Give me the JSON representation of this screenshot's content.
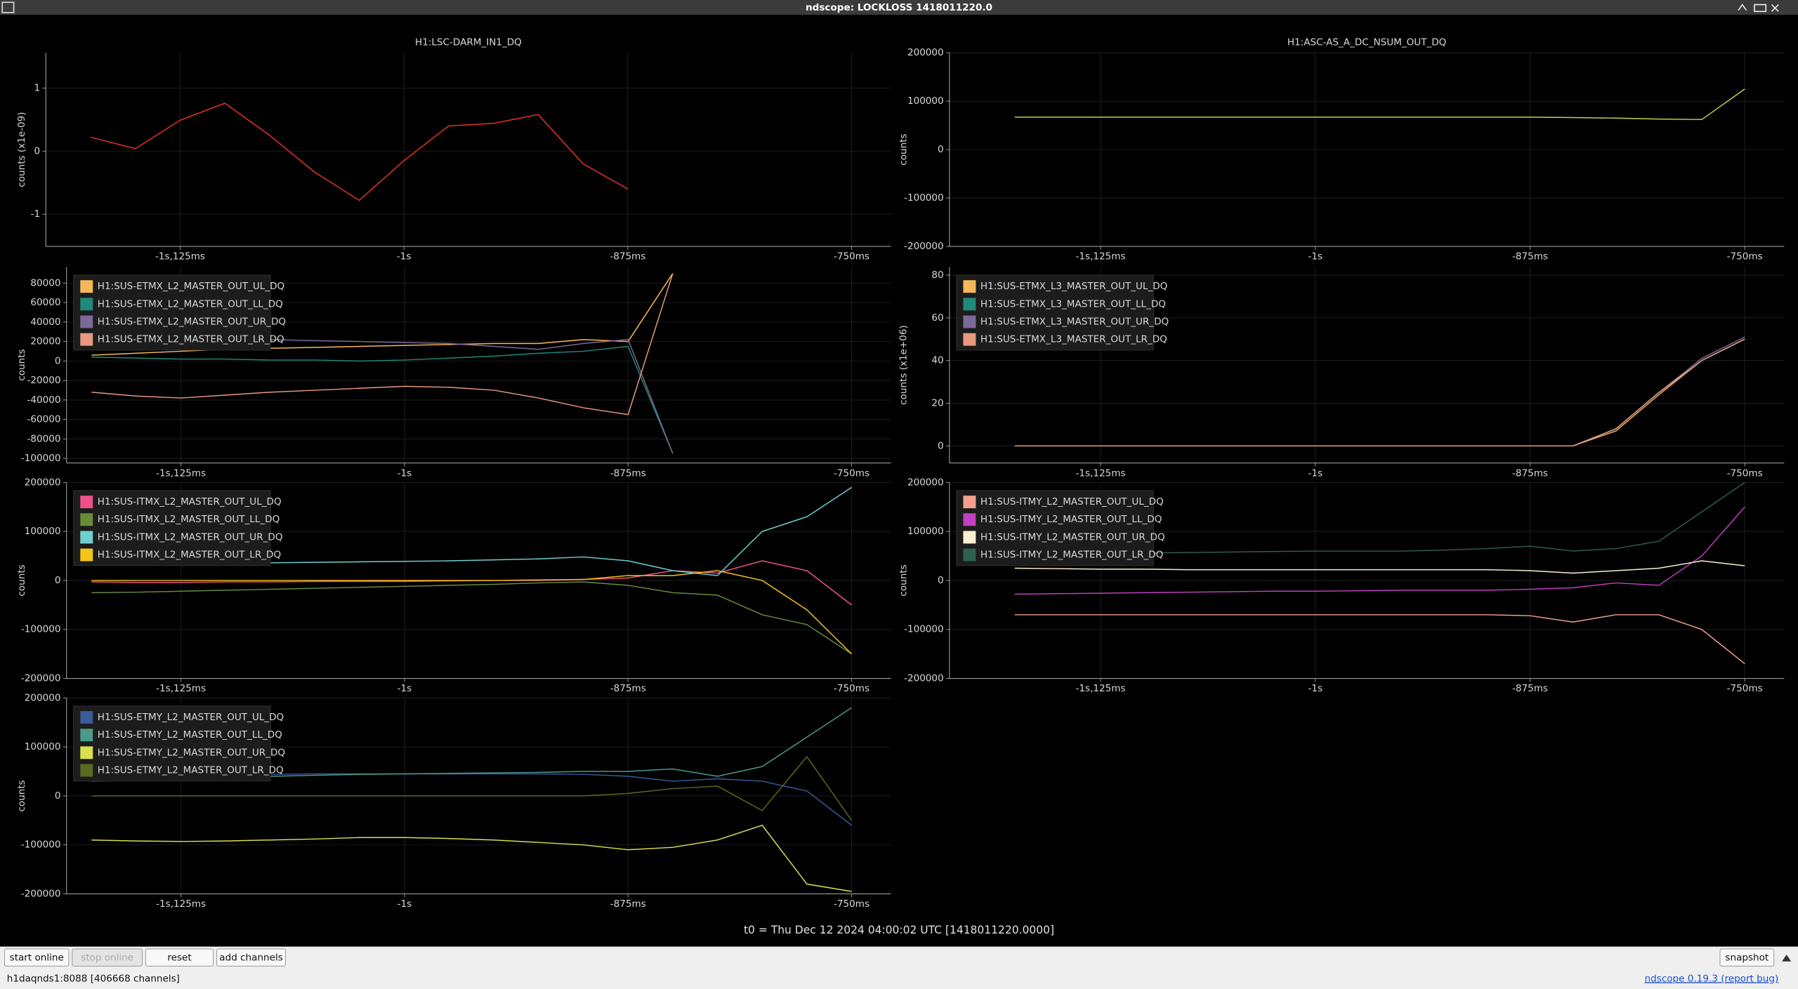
{
  "window": {
    "title": "ndscope: LOCKLOSS 1418011220.0"
  },
  "chart_data": [
    {
      "type": "line",
      "title": "H1:LSC-DARM_IN1_DQ",
      "y_label": "counts (x1e-09)",
      "x": [
        -1.175,
        -1.15,
        -1.125,
        -1.1,
        -1.075,
        -1.05,
        -1.025,
        -1.0,
        -0.975,
        -0.95,
        -0.925,
        -0.9,
        -0.875,
        -0.85,
        -0.825,
        -0.8,
        -0.775,
        -0.75
      ],
      "xlim": [
        -1.2,
        -0.728
      ],
      "xticks": [
        {
          "value": -1.125,
          "label": "-1s,125ms"
        },
        {
          "value": -1,
          "label": "-1s"
        },
        {
          "value": -0.875,
          "label": "-875ms"
        },
        {
          "value": -0.75,
          "label": "-750ms"
        }
      ],
      "ylim": [
        -1.51,
        1.56
      ],
      "yticks": [
        1,
        0,
        -1
      ],
      "grid": true,
      "series": [
        {
          "color": "#e8302a",
          "values": [
            0.22,
            0.04,
            0.49,
            0.76,
            0.25,
            -0.33,
            -0.78,
            -0.15,
            0.4,
            0.44,
            0.58,
            -0.2,
            -0.6,
            null,
            null,
            null,
            null,
            null
          ]
        }
      ]
    },
    {
      "type": "line",
      "title": "H1:ASC-AS_A_DC_NSUM_OUT_DQ",
      "y_label": "counts",
      "x": [
        -1.175,
        -1.15,
        -1.125,
        -1.1,
        -1.075,
        -1.05,
        -1.025,
        -1.0,
        -0.975,
        -0.95,
        -0.925,
        -0.9,
        -0.875,
        -0.85,
        -0.825,
        -0.8,
        -0.775,
        -0.75
      ],
      "xlim": [
        -1.213,
        -0.727
      ],
      "xticks": [
        {
          "value": -1.125,
          "label": "-1s,125ms"
        },
        {
          "value": -1,
          "label": "-1s"
        },
        {
          "value": -0.875,
          "label": "-875ms"
        },
        {
          "value": -0.75,
          "label": "-750ms"
        }
      ],
      "ylim": [
        -200000,
        200000
      ],
      "yticks": [
        200000,
        100000,
        0,
        -100000,
        -200000
      ],
      "grid": true,
      "series": [
        {
          "color": "#c8d040",
          "values": [
            67000,
            67000,
            67000,
            67000,
            67000,
            67000,
            67000,
            67000,
            67000,
            67000,
            67000,
            67000,
            67000,
            66000,
            65000,
            63000,
            62000,
            125000
          ]
        }
      ]
    },
    {
      "type": "line",
      "y_label": "counts",
      "x": [
        -1.175,
        -1.15,
        -1.125,
        -1.1,
        -1.075,
        -1.05,
        -1.025,
        -1.0,
        -0.975,
        -0.95,
        -0.925,
        -0.9,
        -0.875,
        -0.85,
        -0.825,
        -0.8,
        -0.775,
        -0.75
      ],
      "xlim": [
        -1.189,
        -0.728
      ],
      "xticks": [
        {
          "value": -1.125,
          "label": "-1s,125ms"
        },
        {
          "value": -1,
          "label": "-1s"
        },
        {
          "value": -0.875,
          "label": "-875ms"
        },
        {
          "value": -0.75,
          "label": "-750ms"
        }
      ],
      "ylim": [
        -104700,
        96500
      ],
      "yticks": [
        80000,
        60000,
        40000,
        20000,
        0,
        -20000,
        -40000,
        -60000,
        -80000,
        -100000
      ],
      "grid": true,
      "legend": "upper left",
      "series": [
        {
          "name": "H1:SUS-ETMX_L2_MASTER_OUT_UL_DQ",
          "color": "#f5b85b",
          "values": [
            6000,
            8000,
            10000,
            12000,
            13000,
            14000,
            15000,
            16000,
            17000,
            18000,
            18000,
            22000,
            20000,
            90000,
            null,
            null,
            null,
            null
          ]
        },
        {
          "name": "H1:SUS-ETMX_L2_MASTER_OUT_LL_DQ",
          "color": "#1f8a7a",
          "values": [
            4000,
            3000,
            2000,
            2000,
            1000,
            1000,
            0,
            1000,
            3000,
            5000,
            8000,
            10000,
            15000,
            -95000,
            null,
            null,
            null,
            null
          ]
        },
        {
          "name": "H1:SUS-ETMX_L2_MASTER_OUT_UR_DQ",
          "color": "#7a6a9a",
          "values": [
            28000,
            26000,
            24000,
            22000,
            22000,
            21000,
            20000,
            19000,
            18000,
            15000,
            12000,
            18000,
            22000,
            -95000,
            null,
            null,
            null,
            null
          ]
        },
        {
          "name": "H1:SUS-ETMX_L2_MASTER_OUT_LR_DQ",
          "color": "#e89a80",
          "values": [
            -32000,
            -36000,
            -38000,
            -35000,
            -32000,
            -30000,
            -28000,
            -26000,
            -27000,
            -30000,
            -38000,
            -48000,
            -55000,
            90000,
            null,
            null,
            null,
            null
          ]
        }
      ]
    },
    {
      "type": "line",
      "y_label": "counts (x1e+06)",
      "x": [
        -1.175,
        -1.15,
        -1.125,
        -1.1,
        -1.075,
        -1.05,
        -1.025,
        -1.0,
        -0.975,
        -0.95,
        -0.925,
        -0.9,
        -0.875,
        -0.85,
        -0.825,
        -0.8,
        -0.775,
        -0.75
      ],
      "xlim": [
        -1.213,
        -0.727
      ],
      "xticks": [
        {
          "value": -1.125,
          "label": "-1s,125ms"
        },
        {
          "value": -1,
          "label": "-1s"
        },
        {
          "value": -0.875,
          "label": "-875ms"
        },
        {
          "value": -0.75,
          "label": "-750ms"
        }
      ],
      "ylim": [
        -8,
        83.8
      ],
      "yticks": [
        80,
        60,
        40,
        20,
        0
      ],
      "grid": true,
      "legend": "upper left",
      "series": [
        {
          "name": "H1:SUS-ETMX_L3_MASTER_OUT_UL_DQ",
          "color": "#f5b85b",
          "values": [
            0,
            0,
            0,
            0,
            0,
            0,
            0,
            0,
            0,
            0,
            0,
            0,
            0,
            0,
            7,
            24,
            40,
            50
          ]
        },
        {
          "name": "H1:SUS-ETMX_L3_MASTER_OUT_LL_DQ",
          "color": "#1f8a7a",
          "values": [
            0,
            0,
            0,
            0,
            0,
            0,
            0,
            0,
            0,
            0,
            0,
            0,
            0,
            0,
            8,
            25,
            40,
            50
          ]
        },
        {
          "name": "H1:SUS-ETMX_L3_MASTER_OUT_UR_DQ",
          "color": "#7a6a9a",
          "values": [
            0,
            0,
            0,
            0,
            0,
            0,
            0,
            0,
            0,
            0,
            0,
            0,
            0,
            0,
            8,
            25,
            41,
            51
          ]
        },
        {
          "name": "H1:SUS-ETMX_L3_MASTER_OUT_LR_DQ",
          "color": "#e89a80",
          "values": [
            0,
            0,
            0,
            0,
            0,
            0,
            0,
            0,
            0,
            0,
            0,
            0,
            0,
            0,
            8,
            25,
            40,
            50
          ]
        }
      ]
    },
    {
      "type": "line",
      "y_label": "counts",
      "x": [
        -1.175,
        -1.15,
        -1.125,
        -1.1,
        -1.075,
        -1.05,
        -1.025,
        -1.0,
        -0.975,
        -0.95,
        -0.925,
        -0.9,
        -0.875,
        -0.85,
        -0.825,
        -0.8,
        -0.775,
        -0.75
      ],
      "xlim": [
        -1.189,
        -0.728
      ],
      "xticks": [
        {
          "value": -1.125,
          "label": "-1s,125ms"
        },
        {
          "value": -1,
          "label": "-1s"
        },
        {
          "value": -0.875,
          "label": "-875ms"
        },
        {
          "value": -0.75,
          "label": "-750ms"
        }
      ],
      "ylim": [
        -200000,
        200000
      ],
      "yticks": [
        200000,
        100000,
        0,
        -100000,
        -200000
      ],
      "grid": true,
      "legend": "upper left",
      "series": [
        {
          "name": "H1:SUS-ITMX_L2_MASTER_OUT_UL_DQ",
          "color": "#f0508a",
          "values": [
            -3000,
            -4000,
            -4000,
            -3000,
            -3000,
            -2000,
            -2000,
            -2000,
            -1000,
            0,
            0,
            2000,
            5000,
            20000,
            15000,
            40000,
            20000,
            -50000
          ]
        },
        {
          "name": "H1:SUS-ITMX_L2_MASTER_OUT_LL_DQ",
          "color": "#6a8a3a",
          "values": [
            -25000,
            -24000,
            -22000,
            -20000,
            -18000,
            -16000,
            -14000,
            -12000,
            -10000,
            -8000,
            -5000,
            -3000,
            -10000,
            -25000,
            -30000,
            -70000,
            -90000,
            -150000
          ]
        },
        {
          "name": "H1:SUS-ITMX_L2_MASTER_OUT_UR_DQ",
          "color": "#70d0d0",
          "values": [
            33000,
            33000,
            34000,
            35000,
            36000,
            37000,
            38000,
            39000,
            40000,
            42000,
            44000,
            48000,
            40000,
            20000,
            10000,
            100000,
            130000,
            190000
          ]
        },
        {
          "name": "H1:SUS-ITMX_L2_MASTER_OUT_LR_DQ",
          "color": "#f5c518",
          "values": [
            0,
            0,
            0,
            0,
            0,
            0,
            0,
            0,
            0,
            0,
            1000,
            2000,
            10000,
            10000,
            20000,
            0,
            -60000,
            -150000
          ]
        }
      ]
    },
    {
      "type": "line",
      "y_label": "counts",
      "x": [
        -1.175,
        -1.15,
        -1.125,
        -1.1,
        -1.075,
        -1.05,
        -1.025,
        -1.0,
        -0.975,
        -0.95,
        -0.925,
        -0.9,
        -0.875,
        -0.85,
        -0.825,
        -0.8,
        -0.775,
        -0.75
      ],
      "xlim": [
        -1.213,
        -0.727
      ],
      "xticks": [
        {
          "value": -1.125,
          "label": "-1s,125ms"
        },
        {
          "value": -1,
          "label": "-1s"
        },
        {
          "value": -0.875,
          "label": "-875ms"
        },
        {
          "value": -0.75,
          "label": "-750ms"
        }
      ],
      "ylim": [
        -200000,
        200000
      ],
      "yticks": [
        200000,
        100000,
        0,
        -100000,
        -200000
      ],
      "grid": true,
      "legend": "upper left",
      "series": [
        {
          "name": "H1:SUS-ITMY_L2_MASTER_OUT_UL_DQ",
          "color": "#f4a090",
          "values": [
            -70000,
            -70000,
            -70000,
            -70000,
            -70000,
            -70000,
            -70000,
            -70000,
            -70000,
            -70000,
            -70000,
            -70000,
            -72000,
            -85000,
            -70000,
            -70000,
            -100000,
            -170000
          ]
        },
        {
          "name": "H1:SUS-ITMY_L2_MASTER_OUT_LL_DQ",
          "color": "#c040c0",
          "values": [
            -28000,
            -27000,
            -26000,
            -25000,
            -24000,
            -23000,
            -22000,
            -22000,
            -21000,
            -20000,
            -20000,
            -20000,
            -18000,
            -15000,
            -5000,
            -10000,
            50000,
            150000
          ]
        },
        {
          "name": "H1:SUS-ITMY_L2_MASTER_OUT_UR_DQ",
          "color": "#f8f0d0",
          "values": [
            25000,
            24000,
            23000,
            23000,
            22000,
            22000,
            22000,
            22000,
            22000,
            22000,
            22000,
            22000,
            20000,
            15000,
            20000,
            25000,
            40000,
            30000
          ]
        },
        {
          "name": "H1:SUS-ITMY_L2_MASTER_OUT_LR_DQ",
          "color": "#2f5f50",
          "values": [
            55000,
            55000,
            56000,
            56000,
            57000,
            58000,
            59000,
            60000,
            60000,
            60000,
            62000,
            65000,
            70000,
            60000,
            65000,
            80000,
            140000,
            200000
          ]
        }
      ]
    },
    {
      "type": "line",
      "y_label": "counts",
      "x": [
        -1.175,
        -1.15,
        -1.125,
        -1.1,
        -1.075,
        -1.05,
        -1.025,
        -1.0,
        -0.975,
        -0.95,
        -0.925,
        -0.9,
        -0.875,
        -0.85,
        -0.825,
        -0.8,
        -0.775,
        -0.75
      ],
      "xlim": [
        -1.189,
        -0.728
      ],
      "xticks": [
        {
          "value": -1.125,
          "label": "-1s,125ms"
        },
        {
          "value": -1,
          "label": "-1s"
        },
        {
          "value": -0.875,
          "label": "-875ms"
        },
        {
          "value": -0.75,
          "label": "-750ms"
        }
      ],
      "ylim": [
        -200000,
        200000
      ],
      "yticks": [
        200000,
        100000,
        0,
        -100000,
        -200000
      ],
      "grid": true,
      "legend": "upper left",
      "series": [
        {
          "name": "H1:SUS-ETMY_L2_MASTER_OUT_UL_DQ",
          "color": "#3a5a9a",
          "values": [
            40000,
            42000,
            43000,
            44000,
            44000,
            45000,
            45000,
            45000,
            45000,
            45000,
            45000,
            44000,
            40000,
            30000,
            35000,
            30000,
            10000,
            -60000
          ]
        },
        {
          "name": "H1:SUS-ETMY_L2_MASTER_OUT_LL_DQ",
          "color": "#4a9a8a",
          "values": [
            30000,
            32000,
            35000,
            38000,
            40000,
            42000,
            44000,
            45000,
            46000,
            47000,
            48000,
            50000,
            50000,
            55000,
            40000,
            60000,
            120000,
            180000
          ]
        },
        {
          "name": "H1:SUS-ETMY_L2_MASTER_OUT_UR_DQ",
          "color": "#d8e050",
          "values": [
            -90000,
            -92000,
            -93000,
            -92000,
            -90000,
            -88000,
            -85000,
            -85000,
            -87000,
            -90000,
            -95000,
            -100000,
            -110000,
            -105000,
            -90000,
            -60000,
            -180000,
            -195000
          ]
        },
        {
          "name": "H1:SUS-ETMY_L2_MASTER_OUT_LR_DQ",
          "color": "#5a6a20",
          "values": [
            0,
            0,
            0,
            0,
            0,
            0,
            0,
            0,
            0,
            0,
            0,
            0,
            5000,
            15000,
            20000,
            -30000,
            80000,
            -50000
          ]
        }
      ]
    }
  ],
  "footer": {
    "t0": "t0 = Thu Dec 12 2024 04:00:02 UTC [1418011220.0000]"
  },
  "toolbar": {
    "buttons": [
      "start online",
      "stop online",
      "reset",
      "add channels"
    ],
    "snapshot": "snapshot"
  },
  "status": {
    "server": "h1daqnds1:8088  [406668 channels]",
    "version": "ndscope 0.19.3 (report bug)"
  }
}
